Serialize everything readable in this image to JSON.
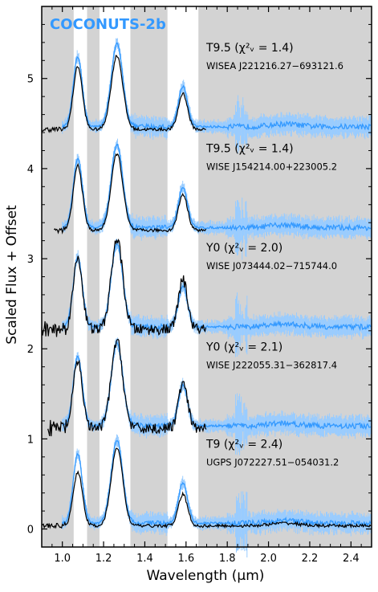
{
  "chart_data": {
    "type": "line",
    "title": "COCONUTS-2b",
    "xlabel": "Wavelength (μm)",
    "ylabel": "Scaled Flux + Offset",
    "xlim": [
      0.9,
      2.5
    ],
    "ylim": [
      -0.2,
      5.8
    ],
    "x_ticks": [
      1.0,
      1.2,
      1.4,
      1.6,
      1.8,
      2.0,
      2.2,
      2.4
    ],
    "x_tick_labels": [
      "1.0",
      "1.2",
      "1.4",
      "1.6",
      "1.8",
      "2.0",
      "2.2",
      "2.4"
    ],
    "y_ticks": [
      0,
      1,
      2,
      3,
      4,
      5
    ],
    "y_tick_labels": [
      "0",
      "1",
      "2",
      "3",
      "4",
      "5"
    ],
    "shaded_bands_um": [
      [
        0.9,
        1.055
      ],
      [
        1.12,
        1.18
      ],
      [
        1.33,
        1.51
      ],
      [
        1.66,
        2.5
      ]
    ],
    "grid": false,
    "colors": {
      "target": "#3399ff",
      "target_err": "#99ccff",
      "template": "#000000",
      "shade": "#d3d3d3",
      "title": "#3399ff"
    },
    "panels": [
      {
        "offset": 4.4,
        "type_label": "T9.5",
        "chi2_label": "(χ²ᵥ = 1.4)",
        "name": "WISEA J221216.27−693121.6",
        "template_xrange": [
          0.9,
          1.7
        ],
        "template_peaks": [
          0.7,
          0.82,
          0.4
        ],
        "noisy": false
      },
      {
        "offset": 3.28,
        "type_label": "T9.5",
        "chi2_label": "(χ²ᵥ = 1.4)",
        "name": "WISE J154214.00+223005.2",
        "template_xrange": [
          0.96,
          1.7
        ],
        "template_peaks": [
          0.72,
          0.85,
          0.4
        ],
        "noisy": false
      },
      {
        "offset": 2.18,
        "type_label": "Y0",
        "chi2_label": "(χ²ᵥ = 2.0)",
        "name": "WISE J073444.02−715744.0",
        "template_xrange": [
          0.9,
          1.7
        ],
        "template_peaks": [
          0.8,
          1.0,
          0.55
        ],
        "noisy": true
      },
      {
        "offset": 1.08,
        "type_label": "Y0",
        "chi2_label": "(χ²ᵥ = 2.1)",
        "name": "WISE J222055.31−362817.4",
        "template_xrange": [
          0.93,
          1.7
        ],
        "template_peaks": [
          0.75,
          0.97,
          0.5
        ],
        "noisy": true
      },
      {
        "offset": 0.0,
        "type_label": "T9",
        "chi2_label": "(χ²ᵥ = 2.4)",
        "name": "UGPS J072227.51−054031.2",
        "template_xrange": [
          0.9,
          2.5
        ],
        "template_peaks": [
          0.6,
          0.87,
          0.35
        ],
        "noisy": false
      }
    ],
    "target_peaks": [
      0.77,
      0.92,
      0.45
    ]
  }
}
